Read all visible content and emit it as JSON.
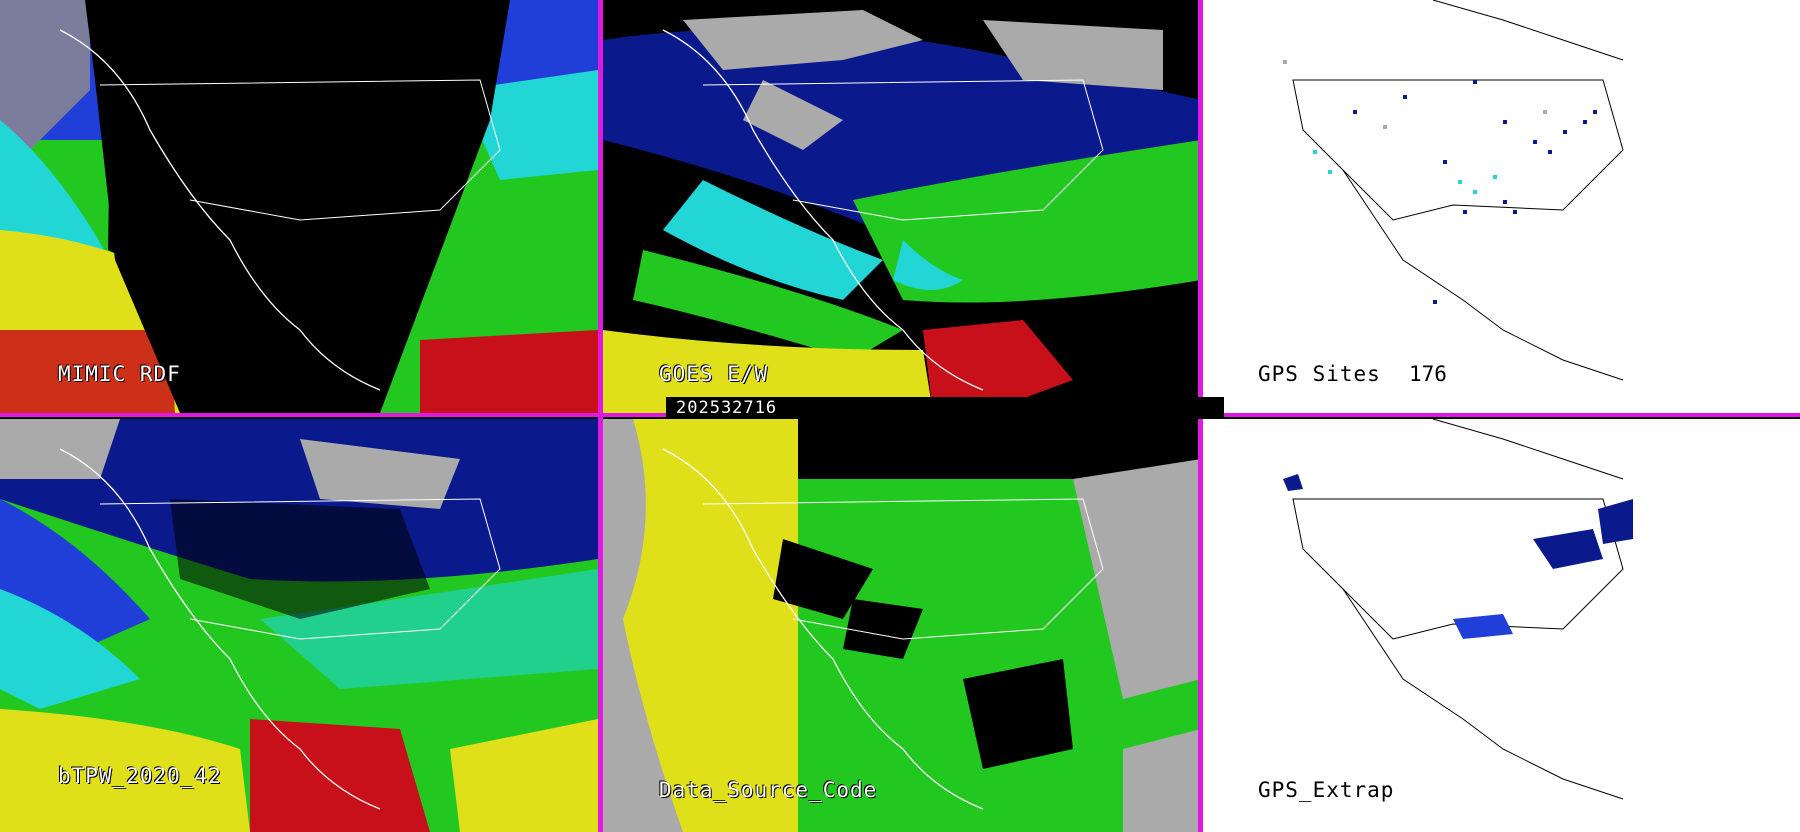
{
  "panels": {
    "mimic": {
      "label": "MIMIC RDF"
    },
    "goes": {
      "label": "GOES E/W"
    },
    "gps_sites": {
      "label": "GPS Sites",
      "count": "176"
    },
    "btpw": {
      "label": "bTPW_2020_42"
    },
    "data_source": {
      "label": "Data_Source_Code"
    },
    "gps_extrap": {
      "label": "GPS_Extrap"
    }
  },
  "timestamp": "202532716",
  "colors": {
    "separator": "#e019e0",
    "blue_dark": "#0a1a8c",
    "blue": "#1f3fd8",
    "cyan": "#22d6d6",
    "green": "#22c81f",
    "yellow": "#e0e01a",
    "red": "#c8101a",
    "gray": "#aaaaaa"
  }
}
